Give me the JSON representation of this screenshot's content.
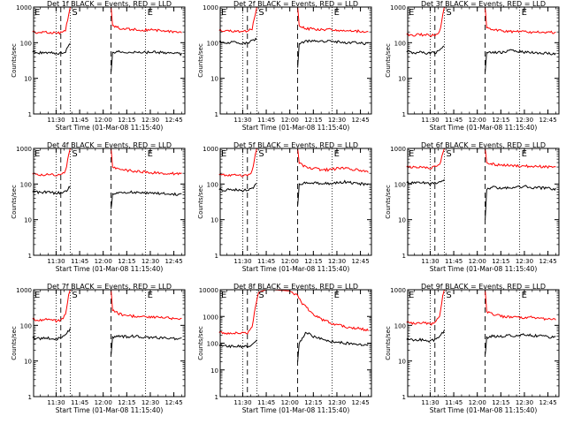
{
  "figure": {
    "x_label": "Start Time (01-Mar-08 11:15:40)",
    "y_label": "Counts/sec",
    "x_tick_labels": [
      "11:30",
      "11:45",
      "12:00",
      "12:15",
      "12:30",
      "12:45"
    ],
    "y_tick_labels": [
      "1",
      "10",
      "100",
      "1000"
    ],
    "y_tick_labels_det8": [
      "1",
      "10",
      "100",
      "1000",
      "10000"
    ],
    "colors": {
      "events": "#000000",
      "lld": "#ff0000",
      "axes": "#000000"
    }
  },
  "chart_data": [
    {
      "type": "line",
      "title": "Det 1f BLACK = Events, RED = LLD",
      "xlim": [
        "11:15:40",
        "12:52"
      ],
      "ylim": [
        1,
        1000
      ],
      "y_scale": "log",
      "interval_markers": {
        "E_start": "11:15:40",
        "S": "11:39",
        "E_end": "12:27"
      },
      "vlines_dotted": [
        "11:30",
        "11:39",
        "12:27"
      ],
      "vlines_dashed": [
        "11:33",
        "12:05"
      ],
      "series": [
        {
          "name": "Events",
          "x": [
            "11:15",
            "11:20",
            "11:25",
            "11:30",
            "11:33",
            "11:36",
            "11:39",
            "12:05",
            "12:06",
            "12:10",
            "12:15",
            "12:20",
            "12:25",
            "12:30",
            "12:35",
            "12:40",
            "12:45",
            "12:50"
          ],
          "values": [
            55,
            52,
            54,
            50,
            52,
            58,
            95,
            15,
            50,
            55,
            53,
            55,
            52,
            55,
            54,
            52,
            50,
            48
          ]
        },
        {
          "name": "LLD",
          "x": [
            "11:15",
            "11:20",
            "11:25",
            "11:30",
            "11:33",
            "11:36",
            "11:38",
            "11:39",
            "12:05",
            "12:06",
            "12:10",
            "12:15",
            "12:20",
            "12:25",
            "12:30",
            "12:35",
            "12:40",
            "12:45",
            "12:50"
          ],
          "values": [
            200,
            190,
            195,
            185,
            190,
            230,
            600,
            1000,
            1000,
            300,
            260,
            240,
            235,
            230,
            225,
            220,
            215,
            205,
            200
          ]
        }
      ]
    },
    {
      "type": "line",
      "title": "Det 2f BLACK = Events, RED = LLD",
      "xlim": [
        "11:15:40",
        "12:52"
      ],
      "ylim": [
        1,
        1000
      ],
      "y_scale": "log",
      "interval_markers": {
        "E_start": "11:15:40",
        "S": "11:39",
        "E_end": "12:27"
      },
      "vlines_dotted": [
        "11:30",
        "11:39",
        "12:27"
      ],
      "vlines_dashed": [
        "11:33",
        "12:05"
      ],
      "series": [
        {
          "name": "Events",
          "x": [
            "11:15",
            "11:20",
            "11:25",
            "11:30",
            "11:33",
            "11:36",
            "11:39",
            "12:05",
            "12:06",
            "12:10",
            "12:15",
            "12:20",
            "12:25",
            "12:30",
            "12:35",
            "12:40",
            "12:45",
            "12:50"
          ],
          "values": [
            105,
            100,
            102,
            98,
            100,
            110,
            130,
            20,
            95,
            110,
            115,
            112,
            108,
            105,
            102,
            100,
            98,
            95
          ]
        },
        {
          "name": "LLD",
          "x": [
            "11:15",
            "11:20",
            "11:25",
            "11:30",
            "11:33",
            "11:36",
            "11:38",
            "11:39",
            "12:05",
            "12:06",
            "12:10",
            "12:15",
            "12:20",
            "12:25",
            "12:30",
            "12:35",
            "12:40",
            "12:45",
            "12:50"
          ],
          "values": [
            220,
            210,
            215,
            205,
            210,
            250,
            600,
            1000,
            1000,
            300,
            250,
            240,
            235,
            230,
            225,
            220,
            215,
            210,
            205
          ]
        }
      ]
    },
    {
      "type": "line",
      "title": "Det 3f BLACK = Events, RED = LLD",
      "xlim": [
        "11:15:40",
        "12:52"
      ],
      "ylim": [
        1,
        1000
      ],
      "y_scale": "log",
      "interval_markers": {
        "E_start": "11:15:40",
        "S": "11:39",
        "E_end": "12:27"
      },
      "vlines_dotted": [
        "11:30",
        "11:39",
        "12:27"
      ],
      "vlines_dashed": [
        "11:33",
        "12:05"
      ],
      "series": [
        {
          "name": "Events",
          "x": [
            "11:15",
            "11:20",
            "11:25",
            "11:30",
            "11:33",
            "11:36",
            "11:39",
            "12:05",
            "12:06",
            "12:10",
            "12:15",
            "12:20",
            "12:25",
            "12:30",
            "12:35",
            "12:40",
            "12:45",
            "12:50"
          ],
          "values": [
            55,
            52,
            54,
            50,
            52,
            58,
            80,
            15,
            50,
            55,
            53,
            60,
            58,
            55,
            54,
            52,
            50,
            48
          ]
        },
        {
          "name": "LLD",
          "x": [
            "11:15",
            "11:20",
            "11:25",
            "11:30",
            "11:33",
            "11:36",
            "11:38",
            "11:39",
            "12:05",
            "12:06",
            "12:10",
            "12:15",
            "12:20",
            "12:25",
            "12:30",
            "12:35",
            "12:40",
            "12:45",
            "12:50"
          ],
          "values": [
            170,
            165,
            168,
            160,
            165,
            200,
            600,
            1000,
            1000,
            260,
            230,
            220,
            210,
            205,
            200,
            195,
            200,
            195,
            190
          ]
        }
      ]
    },
    {
      "type": "line",
      "title": "Det 4f BLACK = Events, RED = LLD",
      "xlim": [
        "11:15:40",
        "12:52"
      ],
      "ylim": [
        1,
        1000
      ],
      "y_scale": "log",
      "interval_markers": {
        "E_start": "11:15:40",
        "S": "11:39",
        "E_end": "12:27"
      },
      "vlines_dotted": [
        "11:30",
        "11:39",
        "12:27"
      ],
      "vlines_dashed": [
        "11:33",
        "12:05"
      ],
      "series": [
        {
          "name": "Events",
          "x": [
            "11:15",
            "11:20",
            "11:25",
            "11:30",
            "11:33",
            "11:36",
            "11:39",
            "12:05",
            "12:06",
            "12:10",
            "12:15",
            "12:20",
            "12:25",
            "12:30",
            "12:35",
            "12:40",
            "12:45",
            "12:50"
          ],
          "values": [
            60,
            58,
            60,
            55,
            57,
            62,
            85,
            20,
            55,
            60,
            58,
            60,
            57,
            55,
            55,
            53,
            52,
            50
          ]
        },
        {
          "name": "LLD",
          "x": [
            "11:15",
            "11:20",
            "11:25",
            "11:30",
            "11:33",
            "11:36",
            "11:38",
            "11:39",
            "12:05",
            "12:06",
            "12:10",
            "12:15",
            "12:20",
            "12:25",
            "12:30",
            "12:35",
            "12:40",
            "12:45",
            "12:50"
          ],
          "values": [
            190,
            180,
            185,
            175,
            180,
            230,
            650,
            1000,
            1000,
            300,
            260,
            240,
            230,
            220,
            210,
            205,
            200,
            195,
            190
          ]
        }
      ]
    },
    {
      "type": "line",
      "title": "Det 5f BLACK = Events, RED = LLD",
      "xlim": [
        "11:15:40",
        "12:52"
      ],
      "ylim": [
        1,
        1000
      ],
      "y_scale": "log",
      "interval_markers": {
        "E_start": "11:15:40",
        "S": "11:39",
        "E_end": "12:27"
      },
      "vlines_dotted": [
        "11:30",
        "11:39",
        "12:27"
      ],
      "vlines_dashed": [
        "11:33",
        "12:05"
      ],
      "series": [
        {
          "name": "Events",
          "x": [
            "11:15",
            "11:20",
            "11:25",
            "11:30",
            "11:33",
            "11:36",
            "11:39",
            "12:05",
            "12:06",
            "12:10",
            "12:15",
            "12:20",
            "12:25",
            "12:30",
            "12:35",
            "12:40",
            "12:45",
            "12:50"
          ],
          "values": [
            70,
            68,
            70,
            65,
            68,
            75,
            100,
            25,
            95,
            110,
            108,
            105,
            102,
            110,
            115,
            108,
            102,
            95
          ]
        },
        {
          "name": "LLD",
          "x": [
            "11:15",
            "11:20",
            "11:25",
            "11:30",
            "11:33",
            "11:36",
            "11:38",
            "11:39",
            "12:05",
            "12:06",
            "12:10",
            "12:15",
            "12:20",
            "12:25",
            "12:30",
            "12:35",
            "12:40",
            "12:45",
            "12:50"
          ],
          "values": [
            180,
            175,
            178,
            170,
            175,
            230,
            650,
            1000,
            1000,
            380,
            300,
            270,
            255,
            250,
            270,
            290,
            260,
            240,
            220
          ]
        }
      ]
    },
    {
      "type": "line",
      "title": "Det 6f BLACK = Events, RED = LLD",
      "xlim": [
        "11:15:40",
        "12:52"
      ],
      "ylim": [
        1,
        1000
      ],
      "y_scale": "log",
      "interval_markers": {
        "E_start": "11:15:40",
        "S": "11:39",
        "E_end": "12:27"
      },
      "vlines_dotted": [
        "11:30",
        "11:39",
        "12:27"
      ],
      "vlines_dashed": [
        "11:33",
        "12:05"
      ],
      "series": [
        {
          "name": "Events",
          "x": [
            "11:15",
            "11:20",
            "11:25",
            "11:30",
            "11:33",
            "11:36",
            "11:39",
            "12:05",
            "12:06",
            "12:10",
            "12:15",
            "12:20",
            "12:25",
            "12:30",
            "12:35",
            "12:40",
            "12:45",
            "12:50"
          ],
          "values": [
            110,
            105,
            108,
            100,
            104,
            115,
            140,
            10,
            70,
            80,
            78,
            80,
            82,
            85,
            80,
            78,
            75,
            72
          ]
        },
        {
          "name": "LLD",
          "x": [
            "11:15",
            "11:20",
            "11:25",
            "11:30",
            "11:33",
            "11:36",
            "11:38",
            "11:39",
            "12:05",
            "12:06",
            "12:10",
            "12:15",
            "12:20",
            "12:25",
            "12:30",
            "12:35",
            "12:40",
            "12:45",
            "12:50"
          ],
          "values": [
            300,
            295,
            300,
            290,
            295,
            340,
            700,
            1000,
            1000,
            400,
            360,
            340,
            330,
            325,
            320,
            315,
            310,
            305,
            300
          ]
        }
      ]
    },
    {
      "type": "line",
      "title": "Det 7f BLACK = Events, RED = LLD",
      "xlim": [
        "11:15:40",
        "12:52"
      ],
      "ylim": [
        1,
        1000
      ],
      "y_scale": "log",
      "interval_markers": {
        "E_start": "11:15:40",
        "S": "11:39",
        "E_end": "12:27"
      },
      "vlines_dotted": [
        "11:30",
        "11:39",
        "12:27"
      ],
      "vlines_dashed": [
        "11:33",
        "12:05"
      ],
      "series": [
        {
          "name": "Events",
          "x": [
            "11:15",
            "11:20",
            "11:25",
            "11:30",
            "11:33",
            "11:36",
            "11:39",
            "12:05",
            "12:06",
            "12:10",
            "12:15",
            "12:20",
            "12:25",
            "12:30",
            "12:35",
            "12:40",
            "12:45",
            "12:50"
          ],
          "values": [
            45,
            42,
            44,
            40,
            45,
            55,
            80,
            15,
            45,
            50,
            48,
            50,
            48,
            46,
            45,
            44,
            43,
            42
          ]
        },
        {
          "name": "LLD",
          "x": [
            "11:15",
            "11:20",
            "11:25",
            "11:30",
            "11:33",
            "11:36",
            "11:38",
            "11:39",
            "12:05",
            "12:06",
            "12:10",
            "12:15",
            "12:20",
            "12:25",
            "12:30",
            "12:35",
            "12:40",
            "12:45",
            "12:50"
          ],
          "values": [
            150,
            140,
            145,
            135,
            140,
            200,
            700,
            1000,
            1000,
            260,
            210,
            190,
            180,
            175,
            170,
            165,
            160,
            155,
            150
          ]
        }
      ]
    },
    {
      "type": "line",
      "title": "Det 8f BLACK = Events, RED = LLD",
      "xlim": [
        "11:15:40",
        "12:52"
      ],
      "ylim": [
        1,
        10000
      ],
      "y_scale": "log",
      "interval_markers": {
        "E_start": "11:15:40",
        "S": "11:39",
        "E_end": "12:27"
      },
      "vlines_dotted": [
        "11:30",
        "11:39",
        "12:27"
      ],
      "vlines_dashed": [
        "11:33",
        "12:05"
      ],
      "series": [
        {
          "name": "Events",
          "x": [
            "11:15",
            "11:20",
            "11:25",
            "11:30",
            "11:33",
            "11:36",
            "11:39",
            "12:05",
            "12:06",
            "12:10",
            "12:15",
            "12:20",
            "12:25",
            "12:30",
            "12:35",
            "12:40",
            "12:45",
            "12:50"
          ],
          "values": [
            80,
            75,
            78,
            72,
            75,
            90,
            140,
            20,
            100,
            250,
            180,
            140,
            120,
            110,
            100,
            95,
            90,
            85
          ]
        },
        {
          "name": "LLD",
          "x": [
            "11:15",
            "11:20",
            "11:25",
            "11:30",
            "11:33",
            "11:36",
            "11:38",
            "11:40",
            "11:45",
            "11:50",
            "12:00",
            "12:05",
            "12:08",
            "12:12",
            "12:16",
            "12:20",
            "12:25",
            "12:30",
            "12:35",
            "12:40",
            "12:45",
            "12:50"
          ],
          "values": [
            250,
            240,
            245,
            235,
            240,
            400,
            2000,
            8000,
            10000,
            10000,
            9000,
            6000,
            3000,
            1800,
            1100,
            800,
            600,
            500,
            420,
            380,
            340,
            300
          ]
        }
      ]
    },
    {
      "type": "line",
      "title": "Det 9f BLACK = Events, RED = LLD",
      "xlim": [
        "11:15:40",
        "12:52"
      ],
      "ylim": [
        1,
        1000
      ],
      "y_scale": "log",
      "interval_markers": {
        "E_start": "11:15:40",
        "S": "11:39",
        "E_end": "12:27"
      },
      "vlines_dotted": [
        "11:30",
        "11:39",
        "12:27"
      ],
      "vlines_dashed": [
        "11:33",
        "12:05"
      ],
      "series": [
        {
          "name": "Events",
          "x": [
            "11:15",
            "11:20",
            "11:25",
            "11:30",
            "11:33",
            "11:36",
            "11:39",
            "12:05",
            "12:06",
            "12:10",
            "12:15",
            "12:20",
            "12:25",
            "12:30",
            "12:35",
            "12:40",
            "12:45",
            "12:50"
          ],
          "values": [
            40,
            38,
            40,
            36,
            40,
            50,
            70,
            15,
            45,
            50,
            48,
            52,
            50,
            55,
            52,
            50,
            48,
            45
          ]
        },
        {
          "name": "LLD",
          "x": [
            "11:15",
            "11:20",
            "11:25",
            "11:30",
            "11:33",
            "11:36",
            "11:38",
            "11:39",
            "12:05",
            "12:06",
            "12:10",
            "12:15",
            "12:20",
            "12:25",
            "12:30",
            "12:35",
            "12:40",
            "12:45",
            "12:50"
          ],
          "values": [
            120,
            115,
            118,
            110,
            115,
            180,
            650,
            1000,
            1000,
            250,
            200,
            180,
            170,
            165,
            160,
            170,
            155,
            150,
            145
          ]
        }
      ]
    }
  ]
}
